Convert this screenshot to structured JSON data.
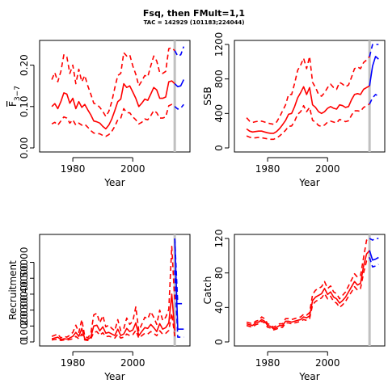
{
  "title": "Fsq, then FMult=1,1",
  "subtitle": "TAC = 142929 (101183;224044)",
  "colors": {
    "historic": "#ff0000",
    "projection": "#0000ff",
    "divider": "#c0c0c0"
  },
  "chart_data": [
    {
      "id": "fbar",
      "type": "line",
      "xlabel": "Year",
      "ylabel": "F",
      "ylabel_sub": "3−7",
      "xlim": [
        1970,
        2018
      ],
      "ylim": [
        0,
        0.25
      ],
      "xticks": [
        "1980",
        "2000"
      ],
      "yticks": [
        "0.00",
        "0.10",
        "0.20"
      ],
      "divider_year": 2014,
      "years": [
        1973,
        1974,
        1975,
        1976,
        1977,
        1978,
        1979,
        1980,
        1981,
        1982,
        1983,
        1984,
        1985,
        1986,
        1987,
        1988,
        1989,
        1990,
        1991,
        1992,
        1993,
        1994,
        1995,
        1996,
        1997,
        1998,
        1999,
        2000,
        2001,
        2002,
        2003,
        2004,
        2005,
        2006,
        2007,
        2008,
        2009,
        2010,
        2011,
        2012,
        2013,
        2014
      ],
      "median": [
        0.1,
        0.107,
        0.095,
        0.112,
        0.133,
        0.13,
        0.108,
        0.12,
        0.095,
        0.112,
        0.098,
        0.105,
        0.092,
        0.08,
        0.065,
        0.063,
        0.06,
        0.052,
        0.046,
        0.055,
        0.07,
        0.09,
        0.112,
        0.118,
        0.155,
        0.146,
        0.15,
        0.135,
        0.12,
        0.1,
        0.108,
        0.118,
        0.115,
        0.13,
        0.146,
        0.14,
        0.12,
        0.12,
        0.123,
        0.16,
        0.162,
        0.155
      ],
      "lower": [
        0.058,
        0.062,
        0.055,
        0.065,
        0.075,
        0.072,
        0.06,
        0.068,
        0.055,
        0.06,
        0.055,
        0.057,
        0.05,
        0.042,
        0.036,
        0.035,
        0.034,
        0.03,
        0.028,
        0.032,
        0.04,
        0.052,
        0.068,
        0.072,
        0.095,
        0.085,
        0.085,
        0.075,
        0.068,
        0.058,
        0.062,
        0.07,
        0.068,
        0.078,
        0.09,
        0.085,
        0.072,
        0.072,
        0.075,
        0.102,
        0.105,
        0.1
      ],
      "upper": [
        0.165,
        0.182,
        0.16,
        0.185,
        0.225,
        0.22,
        0.18,
        0.2,
        0.155,
        0.19,
        0.16,
        0.175,
        0.15,
        0.13,
        0.108,
        0.105,
        0.098,
        0.088,
        0.076,
        0.088,
        0.112,
        0.145,
        0.175,
        0.18,
        0.23,
        0.222,
        0.225,
        0.198,
        0.178,
        0.15,
        0.162,
        0.175,
        0.172,
        0.198,
        0.222,
        0.21,
        0.182,
        0.18,
        0.185,
        0.24,
        0.242,
        0.235
      ],
      "proj_years": [
        2014,
        2015,
        2016,
        2017
      ],
      "proj_median": [
        0.155,
        0.148,
        0.15,
        0.165
      ],
      "proj_lower": [
        0.1,
        0.094,
        0.096,
        0.105
      ],
      "proj_upper": [
        0.235,
        0.222,
        0.225,
        0.245
      ]
    },
    {
      "id": "ssb",
      "type": "line",
      "xlabel": "Year",
      "ylabel": "SSB",
      "xlim": [
        1970,
        2018
      ],
      "ylim": [
        0,
        1200
      ],
      "xticks": [
        "1980",
        "2000"
      ],
      "yticks": [
        "0",
        "400",
        "800",
        "1200"
      ],
      "divider_year": 2014,
      "years": [
        1973,
        1974,
        1975,
        1976,
        1977,
        1978,
        1979,
        1980,
        1981,
        1982,
        1983,
        1984,
        1985,
        1986,
        1987,
        1988,
        1989,
        1990,
        1991,
        1992,
        1993,
        1994,
        1995,
        1996,
        1997,
        1998,
        1999,
        2000,
        2001,
        2002,
        2003,
        2004,
        2005,
        2006,
        2007,
        2008,
        2009,
        2010,
        2011,
        2012,
        2013,
        2014
      ],
      "median": [
        220,
        195,
        185,
        190,
        195,
        195,
        185,
        175,
        170,
        170,
        190,
        225,
        270,
        320,
        390,
        400,
        480,
        580,
        640,
        710,
        620,
        700,
        500,
        470,
        420,
        400,
        420,
        460,
        480,
        460,
        450,
        500,
        490,
        470,
        480,
        560,
        620,
        630,
        620,
        680,
        700,
        720
      ],
      "lower": [
        140,
        125,
        115,
        118,
        122,
        118,
        112,
        105,
        100,
        100,
        115,
        140,
        170,
        205,
        250,
        255,
        310,
        390,
        420,
        490,
        420,
        470,
        320,
        300,
        260,
        250,
        265,
        300,
        310,
        300,
        290,
        330,
        320,
        305,
        315,
        380,
        430,
        430,
        425,
        470,
        490,
        510
      ],
      "upper": [
        350,
        310,
        295,
        305,
        310,
        310,
        300,
        290,
        280,
        275,
        300,
        360,
        430,
        500,
        620,
        620,
        750,
        900,
        960,
        1040,
        920,
        1060,
        760,
        700,
        620,
        600,
        640,
        700,
        740,
        700,
        680,
        760,
        740,
        710,
        730,
        820,
        920,
        940,
        920,
        990,
        1020,
        1060
      ],
      "proj_years": [
        2014,
        2015,
        2016,
        2017
      ],
      "proj_median": [
        720,
        950,
        1060,
        1030
      ],
      "proj_lower": [
        510,
        580,
        620,
        600
      ],
      "proj_upper": [
        1060,
        1300,
        1500,
        1450
      ]
    },
    {
      "id": "recruitment",
      "type": "line",
      "xlabel": "Year",
      "ylabel": "Recruitment",
      "xlim": [
        1970,
        2018
      ],
      "ylim": [
        0,
        65000
      ],
      "xticks": [
        "1980",
        "2000"
      ],
      "yticks": [
        "0",
        "10000",
        "20000",
        "30000",
        "40000",
        "50000"
      ],
      "divider_year": 2014,
      "years": [
        1973,
        1974,
        1975,
        1976,
        1977,
        1978,
        1979,
        1980,
        1981,
        1982,
        1983,
        1984,
        1985,
        1986,
        1987,
        1988,
        1989,
        1990,
        1991,
        1992,
        1993,
        1994,
        1995,
        1996,
        1997,
        1998,
        1999,
        2000,
        2001,
        2002,
        2003,
        2004,
        2005,
        2006,
        2007,
        2008,
        2009,
        2010,
        2011,
        2012,
        2013,
        2014
      ],
      "median": [
        2000,
        2500,
        3000,
        1500,
        2000,
        1800,
        2500,
        3500,
        6000,
        3500,
        8500,
        2000,
        1500,
        3000,
        10000,
        10500,
        7000,
        9500,
        5500,
        6000,
        5000,
        4000,
        8000,
        4000,
        5000,
        8500,
        6500,
        7500,
        12000,
        4000,
        6500,
        9000,
        8500,
        11000,
        9000,
        6500,
        11500,
        8000,
        9000,
        12000,
        30000,
        7000
      ],
      "lower": [
        1200,
        1500,
        1800,
        900,
        1200,
        1100,
        1500,
        2000,
        3500,
        2000,
        5000,
        1200,
        900,
        1800,
        6000,
        6500,
        4200,
        5800,
        3300,
        3600,
        3000,
        2400,
        4800,
        2400,
        3000,
        5000,
        4000,
        4500,
        7200,
        2400,
        3900,
        5400,
        5000,
        6500,
        5400,
        3900,
        7000,
        4800,
        5400,
        7200,
        18000,
        3500
      ],
      "upper": [
        3500,
        4200,
        5000,
        2500,
        3500,
        3000,
        4200,
        6000,
        10500,
        6000,
        14000,
        3500,
        2600,
        5200,
        17000,
        18000,
        12000,
        16500,
        9500,
        10500,
        8500,
        7000,
        14000,
        7000,
        8500,
        15000,
        11000,
        13000,
        22000,
        7000,
        11000,
        15500,
        14500,
        19000,
        15500,
        11000,
        20000,
        13500,
        15500,
        20500,
        60000,
        25000
      ],
      "proj_years": [
        2014,
        2015,
        2016,
        2017
      ],
      "proj_median": [
        65000,
        8000,
        8000,
        8000
      ],
      "proj_lower": [
        45000,
        3000,
        3000,
        3000
      ],
      "proj_upper": [
        66000,
        24000,
        24000,
        24000
      ]
    },
    {
      "id": "catch",
      "type": "line",
      "xlabel": "Year",
      "ylabel": "Catch",
      "xlim": [
        1970,
        2018
      ],
      "ylim": [
        0,
        120
      ],
      "xticks": [
        "1980",
        "2000"
      ],
      "yticks": [
        "0",
        "40",
        "80",
        "120"
      ],
      "divider_year": 2014,
      "years": [
        1973,
        1974,
        1975,
        1976,
        1977,
        1978,
        1979,
        1980,
        1981,
        1982,
        1983,
        1984,
        1985,
        1986,
        1987,
        1988,
        1989,
        1990,
        1991,
        1992,
        1993,
        1994,
        1995,
        1996,
        1997,
        1998,
        1999,
        2000,
        2001,
        2002,
        2003,
        2004,
        2005,
        2006,
        2007,
        2008,
        2009,
        2010,
        2011,
        2012,
        2013,
        2014
      ],
      "median": [
        21,
        20,
        19,
        22,
        23,
        26,
        24,
        19,
        18,
        15,
        17,
        19,
        19,
        24,
        24,
        23,
        24,
        25,
        26,
        29,
        28,
        30,
        48,
        52,
        54,
        56,
        62,
        55,
        58,
        52,
        50,
        45,
        48,
        52,
        58,
        64,
        70,
        66,
        68,
        88,
        102,
        106
      ],
      "lower": [
        19,
        18,
        17,
        20,
        21,
        24,
        22,
        17,
        16,
        14,
        15,
        17,
        17,
        22,
        22,
        21,
        22,
        23,
        24,
        26,
        25,
        27,
        43,
        47,
        49,
        51,
        56,
        50,
        53,
        47,
        45,
        40,
        43,
        47,
        53,
        58,
        64,
        60,
        62,
        80,
        94,
        98
      ],
      "upper": [
        23,
        22,
        21,
        24,
        25,
        29,
        27,
        21,
        20,
        17,
        19,
        21,
        21,
        27,
        27,
        26,
        27,
        28,
        29,
        32,
        31,
        34,
        55,
        60,
        62,
        64,
        70,
        62,
        65,
        58,
        56,
        50,
        54,
        58,
        65,
        72,
        79,
        75,
        77,
        98,
        118,
        120
      ],
      "proj_years": [
        2014,
        2015,
        2016,
        2017
      ],
      "proj_median": [
        106,
        95,
        96,
        98
      ],
      "proj_lower": [
        98,
        87,
        88,
        90
      ],
      "proj_upper": [
        120,
        118,
        121,
        125
      ]
    }
  ]
}
